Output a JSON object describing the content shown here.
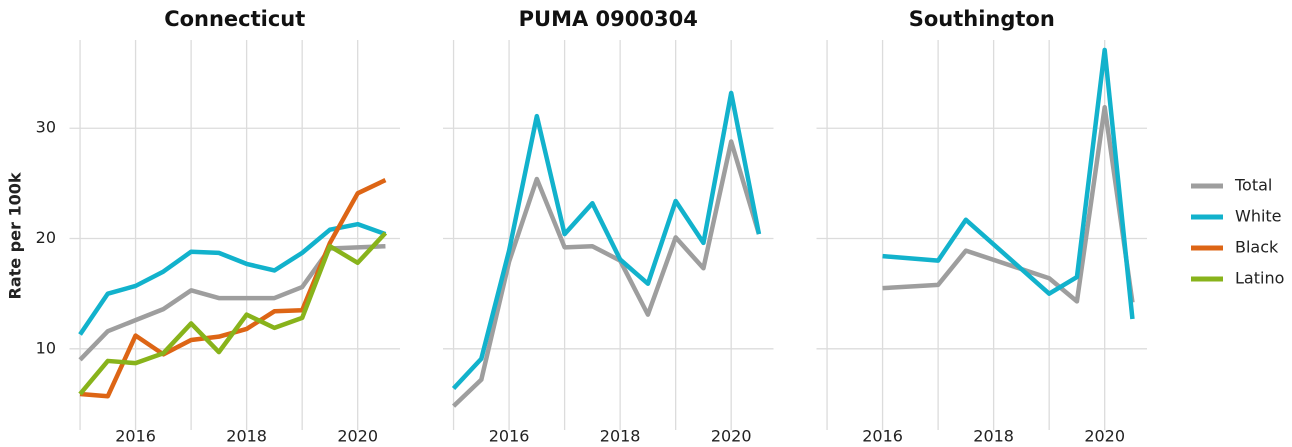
{
  "chart_data": {
    "type": "line",
    "ylabel": "Rate per 100k",
    "ylim": [
      3,
      38
    ],
    "yticks": [
      10,
      20,
      30
    ],
    "xlim": [
      2014.9,
      2020.6
    ],
    "xticks": [
      2016,
      2018,
      2020
    ],
    "x_minor_ticks": [
      2015,
      2017,
      2019
    ],
    "grid": true,
    "legend": "right",
    "series": [
      {
        "name": "Total",
        "color": "#9e9e9e"
      },
      {
        "name": "White",
        "color": "#12b2cc"
      },
      {
        "name": "Black",
        "color": "#dd6515"
      },
      {
        "name": "Latino",
        "color": "#88b31b"
      }
    ],
    "panels": [
      {
        "title": "Connecticut",
        "x": [
          2015,
          2015.5,
          2016,
          2016.5,
          2017,
          2017.5,
          2018,
          2018.5,
          2019,
          2019.5,
          2020,
          2020.5
        ],
        "values": {
          "Total": [
            9.0,
            11.6,
            12.6,
            13.6,
            15.3,
            14.6,
            14.6,
            14.6,
            15.6,
            19.1,
            19.2,
            19.3
          ],
          "White": [
            11.3,
            15.0,
            15.7,
            17.0,
            18.8,
            18.7,
            17.7,
            17.1,
            18.7,
            20.8,
            21.3,
            20.4
          ],
          "Black": [
            5.9,
            5.7,
            11.2,
            9.5,
            10.8,
            11.1,
            11.8,
            13.4,
            13.5,
            19.6,
            24.1,
            25.3
          ],
          "Latino": [
            5.9,
            8.9,
            8.7,
            9.6,
            12.3,
            9.7,
            13.1,
            11.9,
            12.8,
            19.3,
            17.8,
            20.5
          ]
        }
      },
      {
        "title": "PUMA 0900304",
        "x": [
          2015,
          2015.5,
          2016,
          2016.5,
          2017,
          2017.5,
          2018,
          2018.5,
          2019,
          2019.5,
          2020,
          2020.5
        ],
        "values": {
          "Total": [
            4.8,
            7.2,
            17.9,
            25.4,
            19.2,
            19.3,
            18.0,
            13.1,
            20.1,
            17.3,
            28.8,
            20.4
          ],
          "White": [
            6.4,
            9.1,
            18.9,
            31.1,
            20.4,
            23.2,
            18.1,
            15.9,
            23.4,
            19.6,
            33.2,
            20.4
          ]
        }
      },
      {
        "title": "Southington",
        "x": [
          2016,
          2017,
          2017.5,
          2019,
          2019.5,
          2020,
          2020.5
        ],
        "values": {
          "Total": [
            15.5,
            15.8,
            18.9,
            16.4,
            14.3,
            31.9,
            14.2
          ],
          "White": [
            18.4,
            18.0,
            21.7,
            15.0,
            16.5,
            37.1,
            12.7
          ]
        }
      }
    ]
  }
}
